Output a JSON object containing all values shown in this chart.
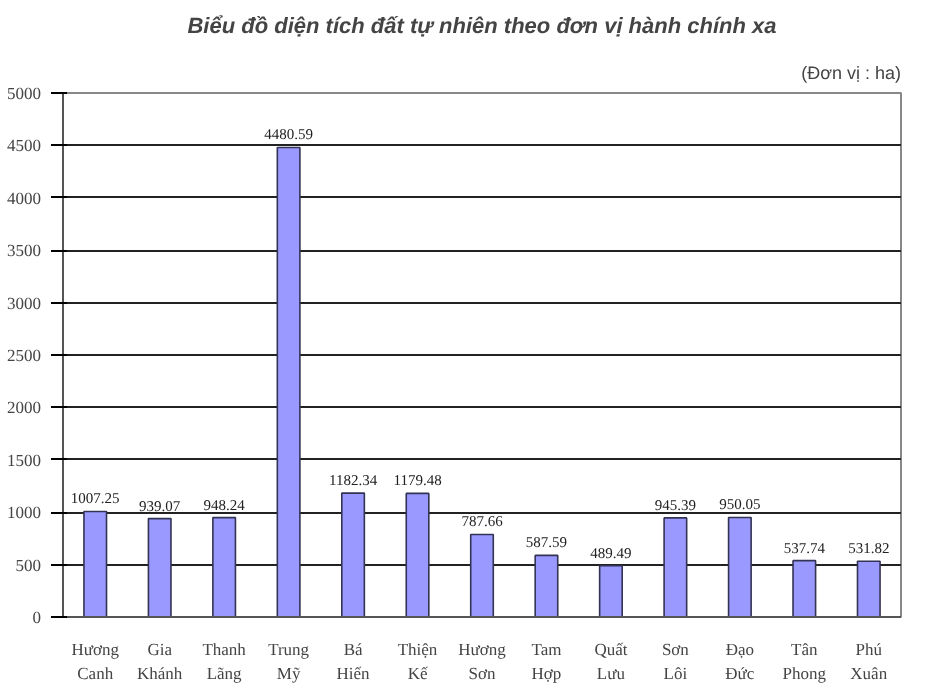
{
  "chart_data": {
    "type": "bar",
    "title": "Biểu đồ diện tích đất tự nhiên theo đơn vị hành chính xa",
    "subtitle": "(Đơn vị : ha)",
    "categories": [
      "Hương Canh",
      "Gia Khánh",
      "Thanh Lãng",
      "Trung Mỹ",
      "Bá Hiến",
      "Thiện Kế",
      "Hương Sơn",
      "Tam Hợp",
      "Quất Lưu",
      "Sơn Lôi",
      "Đạo Đức",
      "Tân Phong",
      "Phú Xuân"
    ],
    "values": [
      1007.25,
      939.07,
      948.24,
      4480.59,
      1182.34,
      1179.48,
      787.66,
      587.59,
      489.49,
      945.39,
      950.05,
      537.74,
      531.82
    ],
    "color": "#9999ff",
    "ylim": [
      0,
      5000
    ],
    "yticks": [
      0,
      500,
      1000,
      1500,
      2000,
      2500,
      3000,
      3500,
      4000,
      4500,
      5000
    ],
    "grid": "y",
    "data_labels": true
  }
}
